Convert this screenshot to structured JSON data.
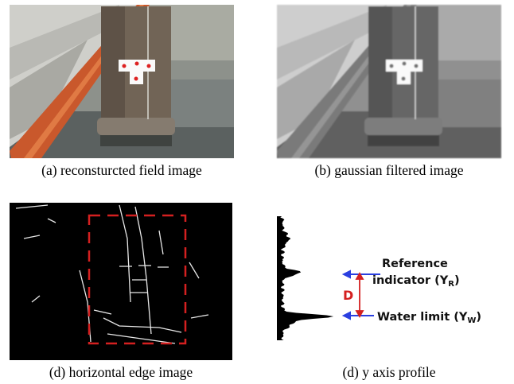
{
  "panels": [
    {
      "caption": "(a) reconsturcted field image"
    },
    {
      "caption": "(b) gaussian filtered image"
    },
    {
      "caption": "(d) horizontal edge image"
    },
    {
      "caption": "(d) y axis profile",
      "annotations": {
        "reference": "Reference",
        "indicator": "indicator (Y",
        "indicator_sub": "R",
        "indicator_close": ")",
        "distance": "D",
        "water": "Water limit (Y",
        "water_sub": "W",
        "water_close": ")"
      }
    }
  ]
}
